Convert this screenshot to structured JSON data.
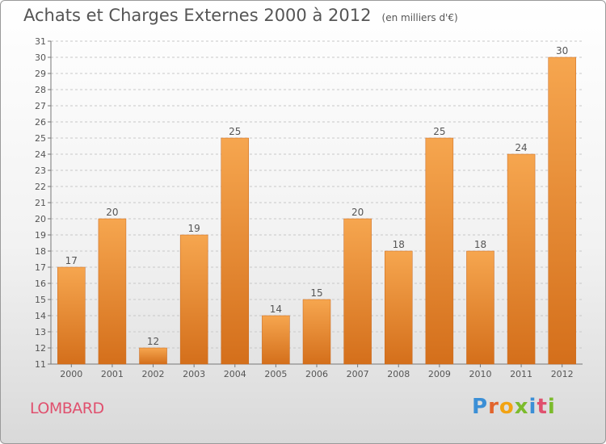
{
  "title": "Achats et Charges Externes 2000 à 2012",
  "subtitle": "(en milliers d'€)",
  "commune": "LOMBARD",
  "brand": {
    "text": "Proxiti",
    "letter_colors": [
      "#3b8fd6",
      "#e2642c",
      "#f2a313",
      "#7cbb2c",
      "#3b8fd6",
      "#e0506e",
      "#7cbb2c"
    ]
  },
  "colors": {
    "bar_top": "#f6a64f",
    "bar_bottom": "#d46f1b",
    "grid": "#c8c8c8",
    "text": "#555555"
  },
  "chart_data": {
    "type": "bar",
    "categories": [
      "2000",
      "2001",
      "2002",
      "2003",
      "2004",
      "2005",
      "2006",
      "2007",
      "2008",
      "2009",
      "2010",
      "2011",
      "2012"
    ],
    "values": [
      17,
      20,
      12,
      19,
      25,
      14,
      15,
      20,
      18,
      25,
      18,
      24,
      30
    ],
    "ylim": [
      11,
      31
    ],
    "yticks": [
      11,
      12,
      13,
      14,
      15,
      16,
      17,
      18,
      19,
      20,
      21,
      22,
      23,
      24,
      25,
      26,
      27,
      28,
      29,
      30,
      31
    ],
    "grid": true,
    "legend": "none"
  }
}
